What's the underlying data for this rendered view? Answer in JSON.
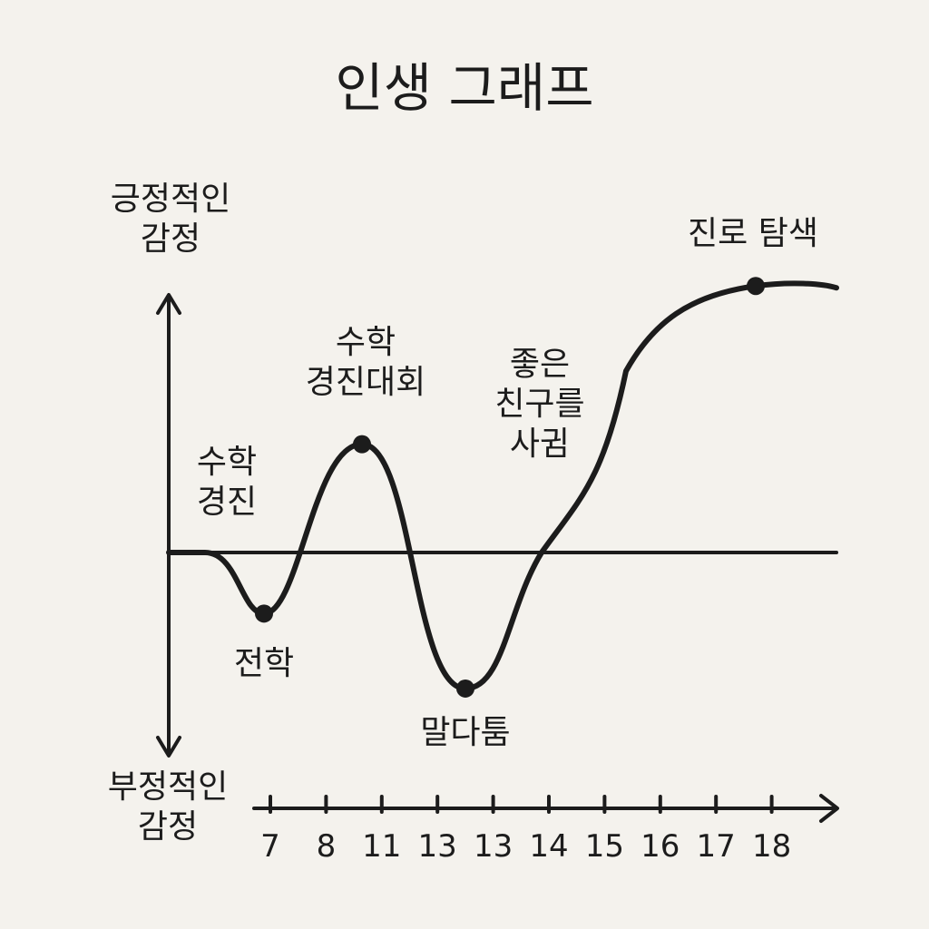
{
  "chart_data": {
    "type": "line",
    "title": "인생 그래프",
    "y_axis": {
      "top_label": "긍정적인\n감정",
      "bottom_label": "부정적인\n감정"
    },
    "x_ticks": [
      "7",
      "8",
      "11",
      "13",
      "13",
      "14",
      "15",
      "16",
      "17",
      "18"
    ],
    "events": [
      {
        "label": "수학\n경진",
        "value": 0
      },
      {
        "label": "전학",
        "value": -2.2
      },
      {
        "label": "수학\n경진대회",
        "value": 3.9
      },
      {
        "label": "말다툼",
        "value": -4.9
      },
      {
        "label": "좋은\n친구를\n사귐",
        "value": 0
      },
      {
        "label": "진로 탐색",
        "value": 9.6
      }
    ],
    "grid": false,
    "colors": {
      "ink": "#1c1c1c",
      "background": "#f4f2ed"
    }
  }
}
